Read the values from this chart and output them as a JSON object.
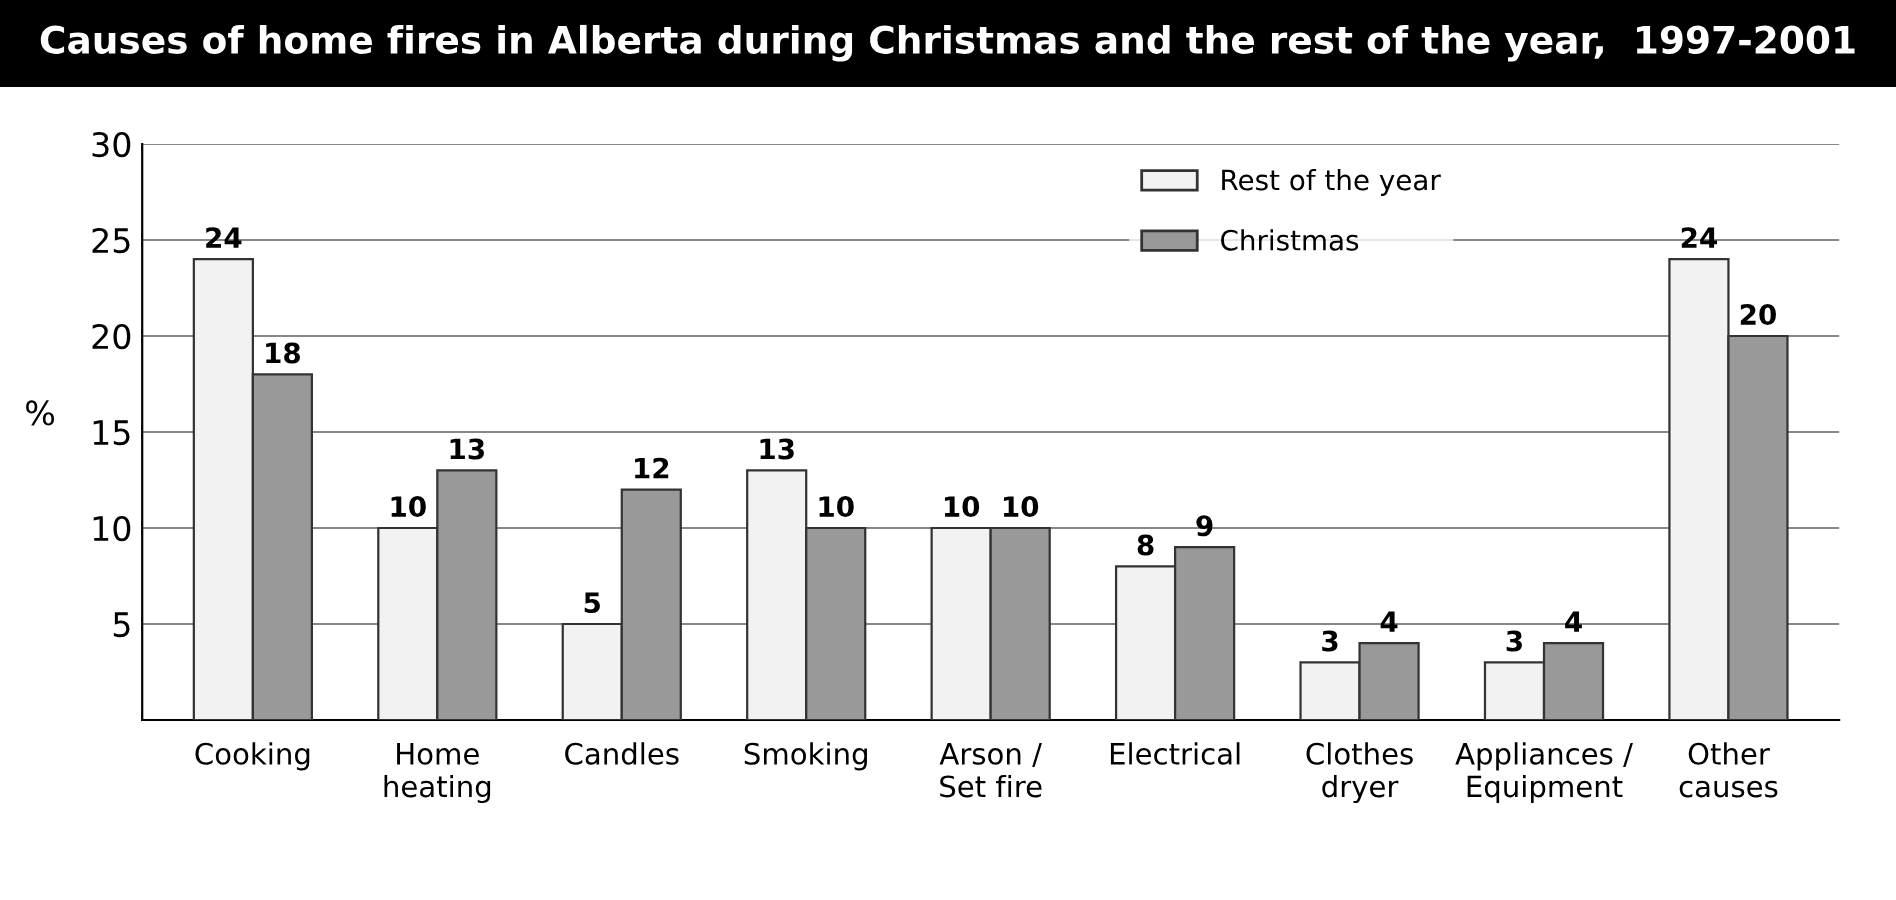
{
  "chart_data": {
    "type": "bar",
    "title": "Causes of home fires in Alberta during Christmas and the rest of the year,  1997-2001",
    "ylabel": "%",
    "categories": [
      "Cooking",
      "Home\nheating",
      "Candles",
      "Smoking",
      "Arson /\nSet fire",
      "Electrical",
      "Clothes\ndryer",
      "Appliances /\nEquipment",
      "Other\ncauses"
    ],
    "series": [
      {
        "name": "Rest of the year",
        "color": "#f2f2f2",
        "values": [
          24,
          10,
          5,
          13,
          10,
          8,
          3,
          3,
          24
        ]
      },
      {
        "name": "Christmas",
        "color": "#999999",
        "values": [
          18,
          13,
          12,
          10,
          10,
          9,
          4,
          4,
          20
        ]
      }
    ],
    "ylim": [
      0,
      30
    ],
    "yticks": [
      5,
      10,
      15,
      20,
      25,
      30
    ],
    "grid": "y",
    "legend": "top right",
    "data_labels": true
  }
}
